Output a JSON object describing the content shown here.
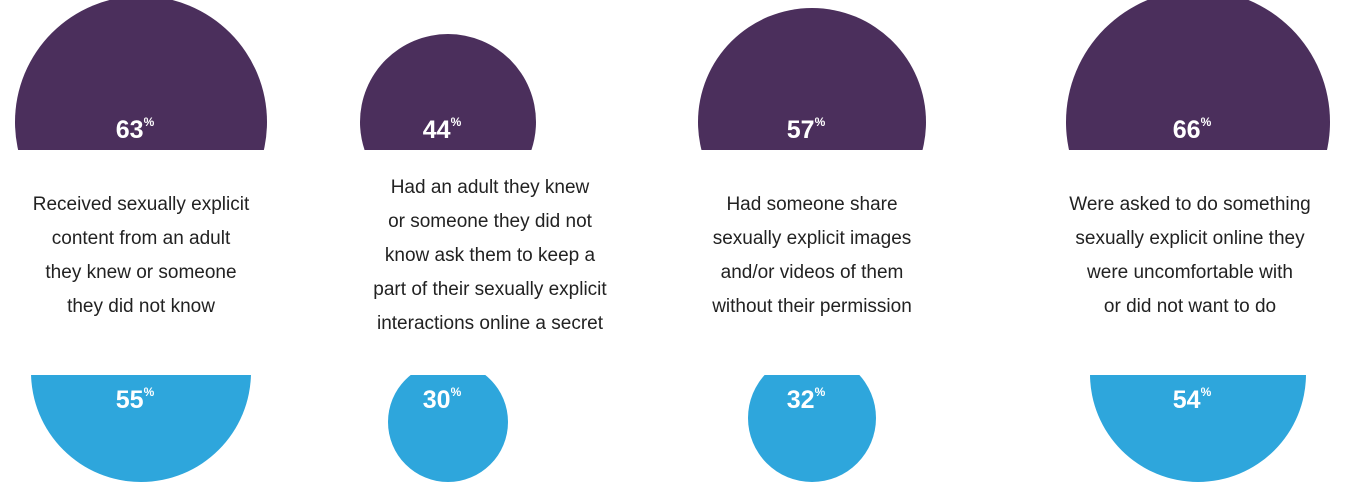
{
  "chart_data": {
    "type": "semicircle",
    "categories": [
      [
        "Received sexually explicit",
        "content from an adult",
        "they knew or someone",
        "they did not know"
      ],
      [
        "Had an adult they knew",
        "or someone they did not",
        "know ask them to keep a",
        "part of their sexually explicit",
        "interactions online a secret"
      ],
      [
        "Had someone share",
        "sexually explicit images",
        "and/or videos of them",
        "without their permission"
      ],
      [
        "Were asked to do something",
        "sexually explicit online they",
        "were uncomfortable with",
        "or did not want to do"
      ]
    ],
    "unit": "%",
    "series": [
      {
        "color": "#4b2f5c",
        "values": [
          63,
          44,
          57,
          66
        ]
      },
      {
        "color": "#2ea6dc",
        "values": [
          55,
          30,
          32,
          54
        ]
      }
    ]
  }
}
